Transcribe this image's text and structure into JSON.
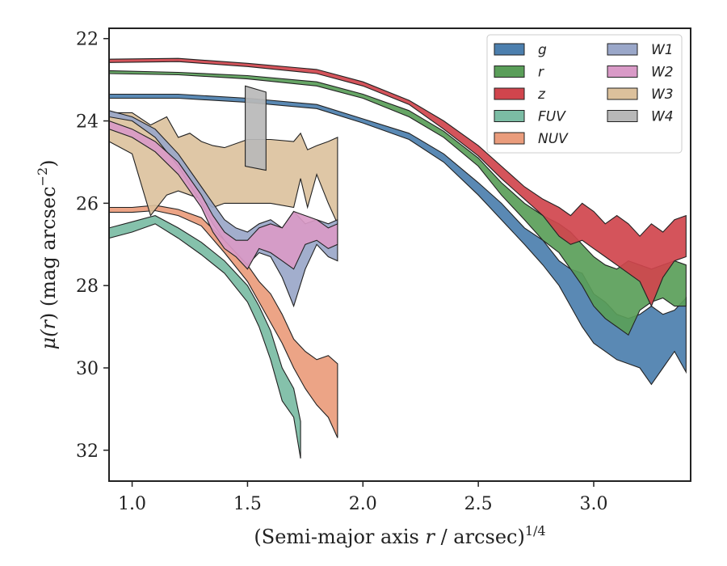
{
  "chart_data": {
    "type": "area",
    "title": "",
    "xlabel_main": "(Semi-major axis ",
    "xlabel_var": "r",
    "xlabel_tail": " / arcsec)",
    "xlabel_sup": "1/4",
    "ylabel_pre": "μ(",
    "ylabel_var": "r",
    "ylabel_tail": ") (mag arcsec",
    "ylabel_sup": "−2",
    "ylabel_close": ")",
    "xlim": [
      0.9,
      3.42
    ],
    "ylim": [
      32.75,
      21.75
    ],
    "y_inverted": true,
    "xticks": [
      {
        "v": 1.0,
        "label": "1.0"
      },
      {
        "v": 1.5,
        "label": "1.5"
      },
      {
        "v": 2.0,
        "label": "2.0"
      },
      {
        "v": 2.5,
        "label": "2.5"
      },
      {
        "v": 3.0,
        "label": "3.0"
      }
    ],
    "yticks": [
      {
        "v": 22,
        "label": "22"
      },
      {
        "v": 24,
        "label": "24"
      },
      {
        "v": 26,
        "label": "26"
      },
      {
        "v": 28,
        "label": "28"
      },
      {
        "v": 30,
        "label": "30"
      },
      {
        "v": 32,
        "label": "32"
      }
    ],
    "legend_position": "top-right",
    "legend_columns": 2,
    "series": [
      {
        "name": "g",
        "color": "#4c7fae",
        "x": [
          0.9,
          1.2,
          1.5,
          1.8,
          2.0,
          2.2,
          2.35,
          2.5,
          2.6,
          2.7,
          2.78,
          2.85,
          2.9,
          2.95,
          3.0,
          3.05,
          3.1,
          3.15,
          3.2,
          3.25,
          3.3,
          3.35,
          3.4
        ],
        "lower": [
          23.35,
          23.35,
          23.45,
          23.6,
          23.95,
          24.3,
          24.8,
          25.5,
          26.0,
          26.6,
          26.9,
          27.4,
          27.6,
          27.7,
          28.2,
          28.4,
          28.7,
          28.8,
          28.7,
          28.5,
          28.7,
          28.6,
          28.3
        ],
        "upper": [
          23.45,
          23.45,
          23.55,
          23.7,
          24.05,
          24.45,
          25.0,
          25.8,
          26.4,
          27.0,
          27.5,
          28.0,
          28.5,
          29.0,
          29.4,
          29.6,
          29.8,
          29.9,
          30.0,
          30.4,
          30.0,
          29.6,
          30.1
        ]
      },
      {
        "name": "r",
        "color": "#5a9e59",
        "x": [
          0.9,
          1.2,
          1.5,
          1.8,
          2.0,
          2.2,
          2.35,
          2.5,
          2.6,
          2.7,
          2.78,
          2.85,
          2.9,
          2.95,
          3.0,
          3.05,
          3.1,
          3.15,
          3.2,
          3.25,
          3.3,
          3.35,
          3.4
        ],
        "lower": [
          22.78,
          22.82,
          22.9,
          23.05,
          23.35,
          23.75,
          24.25,
          24.9,
          25.5,
          26.0,
          26.3,
          26.5,
          26.7,
          27.0,
          27.3,
          27.5,
          27.6,
          27.4,
          27.5,
          27.6,
          27.5,
          27.4,
          27.5
        ],
        "upper": [
          22.85,
          22.88,
          22.98,
          23.15,
          23.45,
          23.9,
          24.4,
          25.1,
          25.8,
          26.4,
          26.9,
          27.2,
          27.6,
          28.0,
          28.5,
          28.8,
          29.0,
          29.2,
          28.6,
          28.4,
          28.3,
          28.5,
          28.5
        ]
      },
      {
        "name": "z",
        "color": "#d0454d",
        "x": [
          0.9,
          1.2,
          1.5,
          1.8,
          2.0,
          2.2,
          2.35,
          2.5,
          2.6,
          2.7,
          2.78,
          2.85,
          2.9,
          2.95,
          3.0,
          3.05,
          3.1,
          3.15,
          3.2,
          3.25,
          3.3,
          3.35,
          3.4
        ],
        "lower": [
          22.5,
          22.48,
          22.6,
          22.75,
          23.05,
          23.5,
          24.0,
          24.6,
          25.1,
          25.6,
          25.9,
          26.1,
          26.3,
          26.0,
          26.2,
          26.5,
          26.3,
          26.5,
          26.8,
          26.5,
          26.7,
          26.4,
          26.3
        ],
        "upper": [
          22.58,
          22.56,
          22.68,
          22.85,
          23.15,
          23.6,
          24.2,
          24.85,
          25.4,
          25.9,
          26.3,
          26.8,
          27.0,
          26.9,
          27.1,
          27.3,
          27.5,
          27.7,
          27.9,
          28.5,
          27.8,
          27.4,
          27.3
        ]
      },
      {
        "name": "FUV",
        "color": "#7bbca4",
        "x": [
          0.9,
          1.0,
          1.1,
          1.2,
          1.3,
          1.4,
          1.5,
          1.55,
          1.6,
          1.65,
          1.7,
          1.73
        ],
        "lower": [
          26.6,
          26.45,
          26.3,
          26.6,
          26.95,
          27.4,
          28.0,
          28.5,
          29.1,
          30.0,
          30.5,
          31.3
        ],
        "upper": [
          26.85,
          26.7,
          26.5,
          26.85,
          27.25,
          27.7,
          28.4,
          29.0,
          29.8,
          30.8,
          31.2,
          32.2
        ]
      },
      {
        "name": "NUV",
        "color": "#ea9c7c",
        "x": [
          0.9,
          1.0,
          1.1,
          1.2,
          1.3,
          1.4,
          1.5,
          1.55,
          1.6,
          1.65,
          1.7,
          1.75,
          1.8,
          1.85,
          1.89
        ],
        "lower": [
          26.1,
          26.1,
          26.05,
          26.15,
          26.35,
          26.9,
          27.5,
          27.9,
          28.2,
          28.7,
          29.3,
          29.6,
          29.8,
          29.7,
          29.9
        ],
        "upper": [
          26.22,
          26.22,
          26.18,
          26.3,
          26.55,
          27.2,
          27.9,
          28.4,
          28.9,
          29.4,
          30.0,
          30.5,
          30.9,
          31.2,
          31.7
        ]
      },
      {
        "name": "W1",
        "color": "#9aa7c9",
        "x": [
          0.9,
          1.0,
          1.1,
          1.2,
          1.3,
          1.35,
          1.4,
          1.45,
          1.5,
          1.55,
          1.6,
          1.65,
          1.7,
          1.75,
          1.8,
          1.85,
          1.89
        ],
        "lower": [
          23.75,
          23.9,
          24.2,
          24.8,
          25.6,
          26.0,
          26.4,
          26.6,
          26.7,
          26.5,
          26.4,
          26.6,
          26.2,
          26.5,
          26.4,
          26.5,
          26.4
        ],
        "upper": [
          23.9,
          24.0,
          24.4,
          25.1,
          26.0,
          26.5,
          26.9,
          27.2,
          27.5,
          27.2,
          27.3,
          27.8,
          28.5,
          27.6,
          27.0,
          27.3,
          27.4
        ]
      },
      {
        "name": "W2",
        "color": "#d99ac7",
        "x": [
          0.9,
          1.0,
          1.1,
          1.2,
          1.3,
          1.35,
          1.4,
          1.45,
          1.5,
          1.55,
          1.6,
          1.65,
          1.7,
          1.75,
          1.8,
          1.85,
          1.89
        ],
        "lower": [
          24.0,
          24.2,
          24.5,
          25.0,
          25.8,
          26.3,
          26.7,
          26.9,
          26.9,
          26.6,
          26.5,
          26.6,
          26.2,
          26.3,
          26.4,
          26.6,
          26.5
        ],
        "upper": [
          24.2,
          24.4,
          24.75,
          25.3,
          26.1,
          26.7,
          27.1,
          27.3,
          27.6,
          27.1,
          27.2,
          27.4,
          27.6,
          27.0,
          26.9,
          27.1,
          27.0
        ]
      },
      {
        "name": "W3",
        "color": "#dcc19c",
        "x": [
          0.9,
          1.0,
          1.08,
          1.15,
          1.2,
          1.25,
          1.3,
          1.35,
          1.4,
          1.5,
          1.6,
          1.7,
          1.73,
          1.76,
          1.8,
          1.85,
          1.89
        ],
        "lower": [
          23.8,
          23.8,
          24.1,
          23.9,
          24.4,
          24.3,
          24.5,
          24.6,
          24.65,
          24.45,
          24.45,
          24.5,
          24.3,
          24.7,
          24.6,
          24.5,
          24.4
        ],
        "upper": [
          24.5,
          24.8,
          26.3,
          25.8,
          25.7,
          25.8,
          25.9,
          26.1,
          26.0,
          26.0,
          26.0,
          26.1,
          25.4,
          26.1,
          25.3,
          26.0,
          26.5
        ]
      },
      {
        "name": "W4",
        "color": "#b8b8b8",
        "x": [
          1.49,
          1.58
        ],
        "lower": [
          23.15,
          23.3
        ],
        "upper": [
          25.1,
          25.2
        ]
      }
    ]
  }
}
